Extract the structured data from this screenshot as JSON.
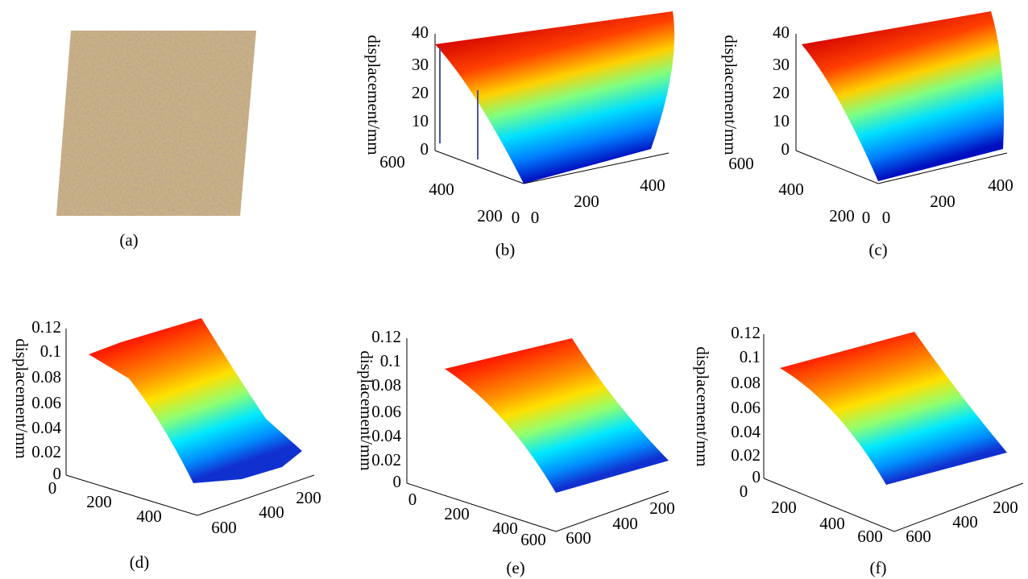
{
  "panels": [
    {
      "label": "(a)"
    },
    {
      "label": "(b)",
      "zlabel": "displacement/mm",
      "zticks": [
        0,
        10,
        20,
        30,
        40
      ],
      "xticks": [
        600,
        400,
        200,
        0
      ],
      "yticks": [
        0,
        200,
        400
      ]
    },
    {
      "label": "(c)",
      "zlabel": "displacement/mm",
      "zticks": [
        0,
        10,
        20,
        30,
        40
      ],
      "xticks": [
        600,
        400,
        200,
        0
      ],
      "yticks": [
        0,
        200,
        400
      ]
    },
    {
      "label": "(d)",
      "zlabel": "displacement/mm",
      "zticks": [
        0,
        0.02,
        0.04,
        0.06,
        0.08,
        0.1,
        0.12
      ],
      "xticks": [
        0,
        200,
        400
      ],
      "yticks": [
        600,
        400,
        200
      ]
    },
    {
      "label": "(e)",
      "zlabel": "displacement/mm",
      "zticks": [
        0,
        0.02,
        0.04,
        0.06,
        0.08,
        0.1,
        0.12
      ],
      "xticks": [
        0,
        200,
        400,
        600
      ],
      "yticks": [
        600,
        400,
        200
      ]
    },
    {
      "label": "(f)",
      "zlabel": "displacement/mm",
      "zticks": [
        0,
        0.02,
        0.04,
        0.06,
        0.08,
        0.1,
        0.12
      ],
      "xticks": [
        0,
        200,
        400,
        600
      ],
      "yticks": [
        600,
        400,
        200
      ]
    }
  ]
}
